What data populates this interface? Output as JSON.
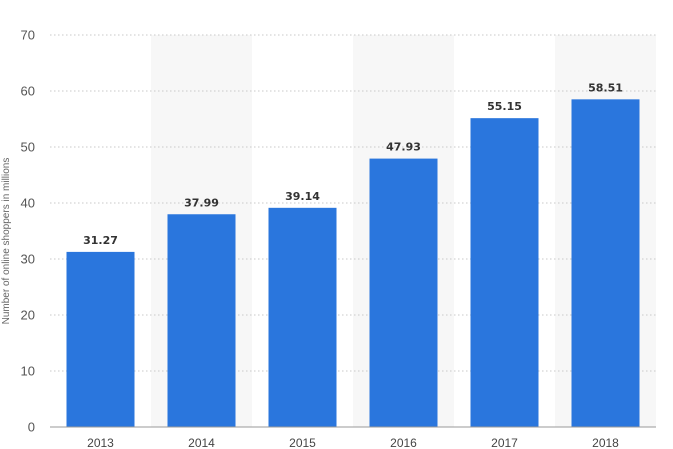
{
  "chart_data": {
    "type": "bar",
    "categories": [
      "2013",
      "2014",
      "2015",
      "2016",
      "2017",
      "2018"
    ],
    "values": [
      31.27,
      37.99,
      39.14,
      47.93,
      55.15,
      58.51
    ],
    "value_labels": [
      "31.27",
      "37.99",
      "39.14",
      "47.93",
      "55.15",
      "58.51"
    ],
    "ylabel": "Number of online shoppers in millions",
    "xlabel": "",
    "title": "",
    "ylim": [
      0,
      70
    ],
    "yticks": [
      0,
      10,
      20,
      30,
      40,
      50,
      60,
      70
    ],
    "grid": true,
    "bar_color": "#2a76dd",
    "legend": "none"
  }
}
